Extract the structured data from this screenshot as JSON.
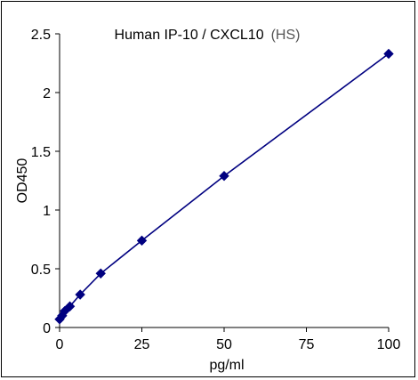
{
  "chart_data": {
    "type": "line",
    "title": "Human IP-10 / CXCL10",
    "title_suffix": "(HS)",
    "xlabel": "pg/ml",
    "ylabel": "OD450",
    "xlim": [
      0,
      100
    ],
    "ylim": [
      0,
      2.5
    ],
    "x_ticks": [
      "0",
      "25",
      "50",
      "75",
      "100"
    ],
    "y_ticks": [
      "0",
      "0.5",
      "1",
      "1.5",
      "2",
      "2.5"
    ],
    "grid": false,
    "legend": "none",
    "series": [
      {
        "marker": "diamond",
        "color": "#000080",
        "x": [
          0,
          0.78,
          1.56,
          3.13,
          6.25,
          12.5,
          25,
          50,
          100
        ],
        "y": [
          0.07,
          0.1,
          0.14,
          0.18,
          0.28,
          0.46,
          0.74,
          1.29,
          2.33
        ]
      }
    ]
  }
}
